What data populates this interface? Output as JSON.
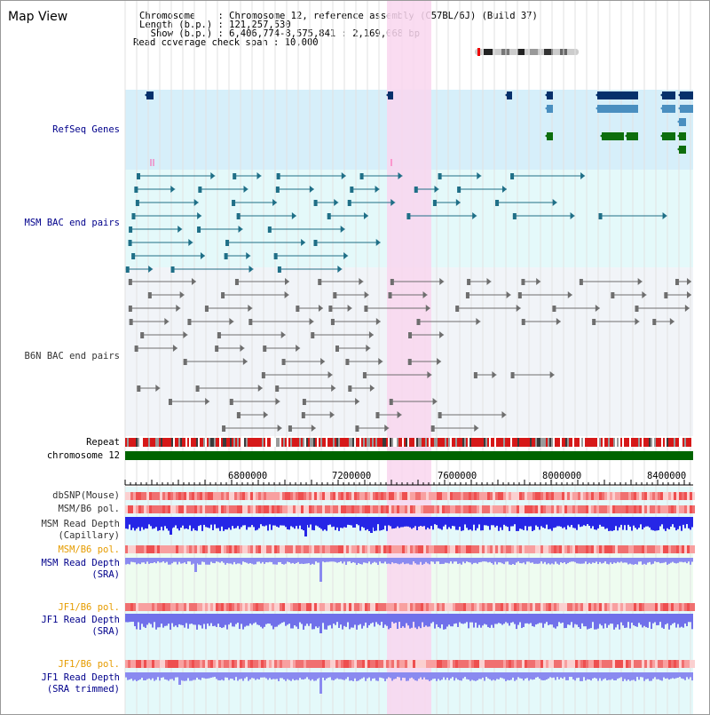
{
  "window": {
    "title": "Map View"
  },
  "info": {
    "chromosome_line": "Chromosome    : Chromosome 12, reference assembly (C57BL/6J) (Build 37)",
    "length_line": "Length (b.p.) : 121,257,530",
    "show_line": "  Show (b.p.) : 6,406,774-8,575,841 : 2,169,068 bp",
    "coverage_line": "Read coverage check span : 10,000"
  },
  "tracks": {
    "refseq": "RefSeq Genes",
    "msm_bac": "MSM BAC end pairs",
    "b6n_bac": "B6N BAC end pairs",
    "repeat": "Repeat",
    "chromosome": "chromosome 12",
    "dbsnp": "dbSNP(Mouse)",
    "msm_b6_pol_gray": "MSM/B6 pol.",
    "msm_read_depth_cap_1": "MSM Read Depth",
    "msm_read_depth_cap_2": "(Capillary)",
    "msm_b6_pol_orange": "MSM/B6 pol.",
    "msm_read_depth_sra_1": "MSM Read Depth",
    "msm_read_depth_sra_2": "(SRA)",
    "jf1_b6_pol_1": "JF1/B6 pol.",
    "jf1_read_depth_sra_1": "JF1 Read Depth",
    "jf1_read_depth_sra_2": "(SRA)",
    "jf1_b6_pol_2": "JF1/B6 pol.",
    "jf1_read_depth_trim_1": "JF1 Read Depth",
    "jf1_read_depth_trim_2": "(SRA trimmed)"
  },
  "axis": {
    "ticks": [
      "6800000",
      "7200000",
      "7600000",
      "8000000",
      "8400000"
    ]
  },
  "colors": {
    "highlight": "#f9d6ef",
    "refseq_bg": "#d6effa",
    "msm_bg": "#e4f9fa",
    "b6n_bg": "#f1f4f8",
    "navy_feature": "#06306b",
    "steel_feature": "#4a8fc0",
    "green_feature": "#0d6e0d",
    "teal_feature": "#1f6f87",
    "gray_feature": "#6e6e6e",
    "chromosome_bar": "#006400"
  }
}
